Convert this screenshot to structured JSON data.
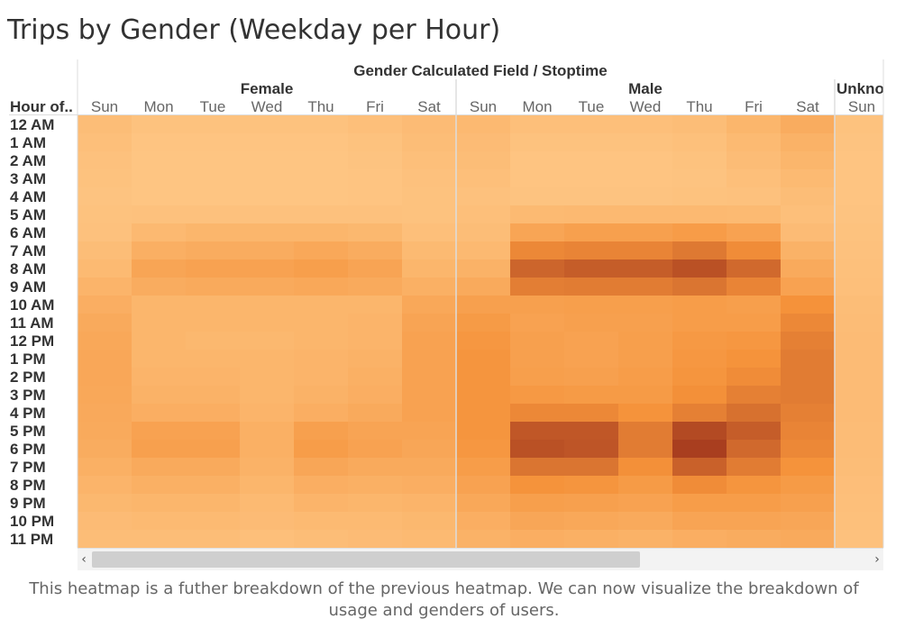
{
  "title": "Trips by Gender (Weekday per Hour)",
  "caption": "This heatmap is a futher breakdown of the previous heatmap. We can now visualize the breakdown of usage and genders of users.",
  "scroll": {
    "left_arrow": "‹",
    "right_arrow": "›"
  },
  "colors": {
    "low": "#fec785",
    "mid": "#f5923a",
    "high": "#a53a1e",
    "divider": "#dddddd"
  },
  "chart_data": {
    "type": "heatmap",
    "title": "Trips by Gender (Weekday per Hour)",
    "column_header": "Gender Calculated Field  /  Stoptime",
    "row_header": "Hour of..",
    "groups": [
      {
        "name": "Female",
        "days": [
          "Sun",
          "Mon",
          "Tue",
          "Wed",
          "Thu",
          "Fri",
          "Sat"
        ]
      },
      {
        "name": "Male",
        "days": [
          "Sun",
          "Mon",
          "Tue",
          "Wed",
          "Thu",
          "Fri",
          "Sat"
        ]
      },
      {
        "name": "Unkno",
        "days": [
          "Sun"
        ]
      }
    ],
    "rows": [
      "12 AM",
      "1 AM",
      "2 AM",
      "3 AM",
      "4 AM",
      "5 AM",
      "6 AM",
      "7 AM",
      "8 AM",
      "9 AM",
      "10 AM",
      "11 AM",
      "12 PM",
      "1 PM",
      "2 PM",
      "3 PM",
      "4 PM",
      "5 PM",
      "6 PM",
      "7 PM",
      "8 PM",
      "9 PM",
      "10 PM",
      "11 PM"
    ],
    "intensity_scale": [
      0,
      100
    ],
    "values": [
      [
        10,
        5,
        5,
        5,
        5,
        8,
        12,
        15,
        8,
        8,
        8,
        10,
        18,
        28,
        5
      ],
      [
        8,
        3,
        3,
        3,
        3,
        5,
        10,
        12,
        5,
        5,
        5,
        7,
        14,
        22,
        4
      ],
      [
        6,
        2,
        2,
        2,
        2,
        4,
        8,
        10,
        3,
        3,
        3,
        5,
        11,
        18,
        3
      ],
      [
        5,
        2,
        2,
        2,
        2,
        3,
        6,
        8,
        3,
        3,
        3,
        4,
        8,
        14,
        3
      ],
      [
        4,
        2,
        2,
        2,
        2,
        3,
        5,
        6,
        4,
        4,
        4,
        5,
        6,
        10,
        3
      ],
      [
        5,
        6,
        6,
        6,
        6,
        6,
        5,
        8,
        14,
        15,
        15,
        15,
        14,
        8,
        4
      ],
      [
        6,
        15,
        18,
        18,
        18,
        16,
        8,
        10,
        35,
        40,
        40,
        45,
        38,
        12,
        5
      ],
      [
        10,
        25,
        28,
        28,
        32,
        28,
        14,
        15,
        60,
        62,
        62,
        68,
        58,
        22,
        6
      ],
      [
        14,
        35,
        38,
        38,
        42,
        36,
        18,
        22,
        78,
        82,
        82,
        88,
        76,
        30,
        7
      ],
      [
        20,
        28,
        30,
        30,
        32,
        30,
        24,
        30,
        65,
        66,
        66,
        70,
        62,
        38,
        8
      ],
      [
        26,
        18,
        18,
        18,
        18,
        18,
        32,
        40,
        40,
        42,
        42,
        44,
        42,
        55,
        10
      ],
      [
        30,
        18,
        18,
        18,
        18,
        20,
        36,
        46,
        38,
        40,
        40,
        44,
        44,
        60,
        11
      ],
      [
        32,
        18,
        16,
        16,
        18,
        20,
        38,
        50,
        40,
        38,
        42,
        48,
        50,
        64,
        12
      ],
      [
        33,
        18,
        18,
        18,
        20,
        22,
        38,
        52,
        40,
        38,
        42,
        50,
        54,
        66,
        12
      ],
      [
        33,
        20,
        20,
        18,
        20,
        24,
        38,
        52,
        42,
        40,
        44,
        52,
        58,
        66,
        12
      ],
      [
        32,
        22,
        22,
        18,
        22,
        26,
        38,
        52,
        48,
        46,
        46,
        56,
        64,
        66,
        12
      ],
      [
        31,
        26,
        26,
        20,
        26,
        30,
        38,
        52,
        60,
        60,
        54,
        64,
        72,
        64,
        12
      ],
      [
        30,
        38,
        38,
        24,
        40,
        36,
        36,
        52,
        85,
        85,
        66,
        92,
        82,
        62,
        11
      ],
      [
        28,
        40,
        40,
        24,
        44,
        38,
        34,
        50,
        88,
        86,
        66,
        98,
        76,
        60,
        11
      ],
      [
        24,
        30,
        30,
        22,
        34,
        30,
        30,
        44,
        70,
        70,
        56,
        80,
        66,
        54,
        10
      ],
      [
        20,
        24,
        24,
        18,
        26,
        24,
        26,
        38,
        54,
        52,
        46,
        58,
        52,
        46,
        9
      ],
      [
        16,
        18,
        18,
        14,
        20,
        18,
        20,
        32,
        42,
        40,
        38,
        44,
        44,
        40,
        8
      ],
      [
        12,
        14,
        14,
        12,
        14,
        14,
        16,
        26,
        34,
        32,
        30,
        36,
        36,
        34,
        7
      ],
      [
        10,
        10,
        10,
        8,
        10,
        12,
        14,
        22,
        26,
        24,
        22,
        26,
        28,
        30,
        6
      ]
    ]
  }
}
